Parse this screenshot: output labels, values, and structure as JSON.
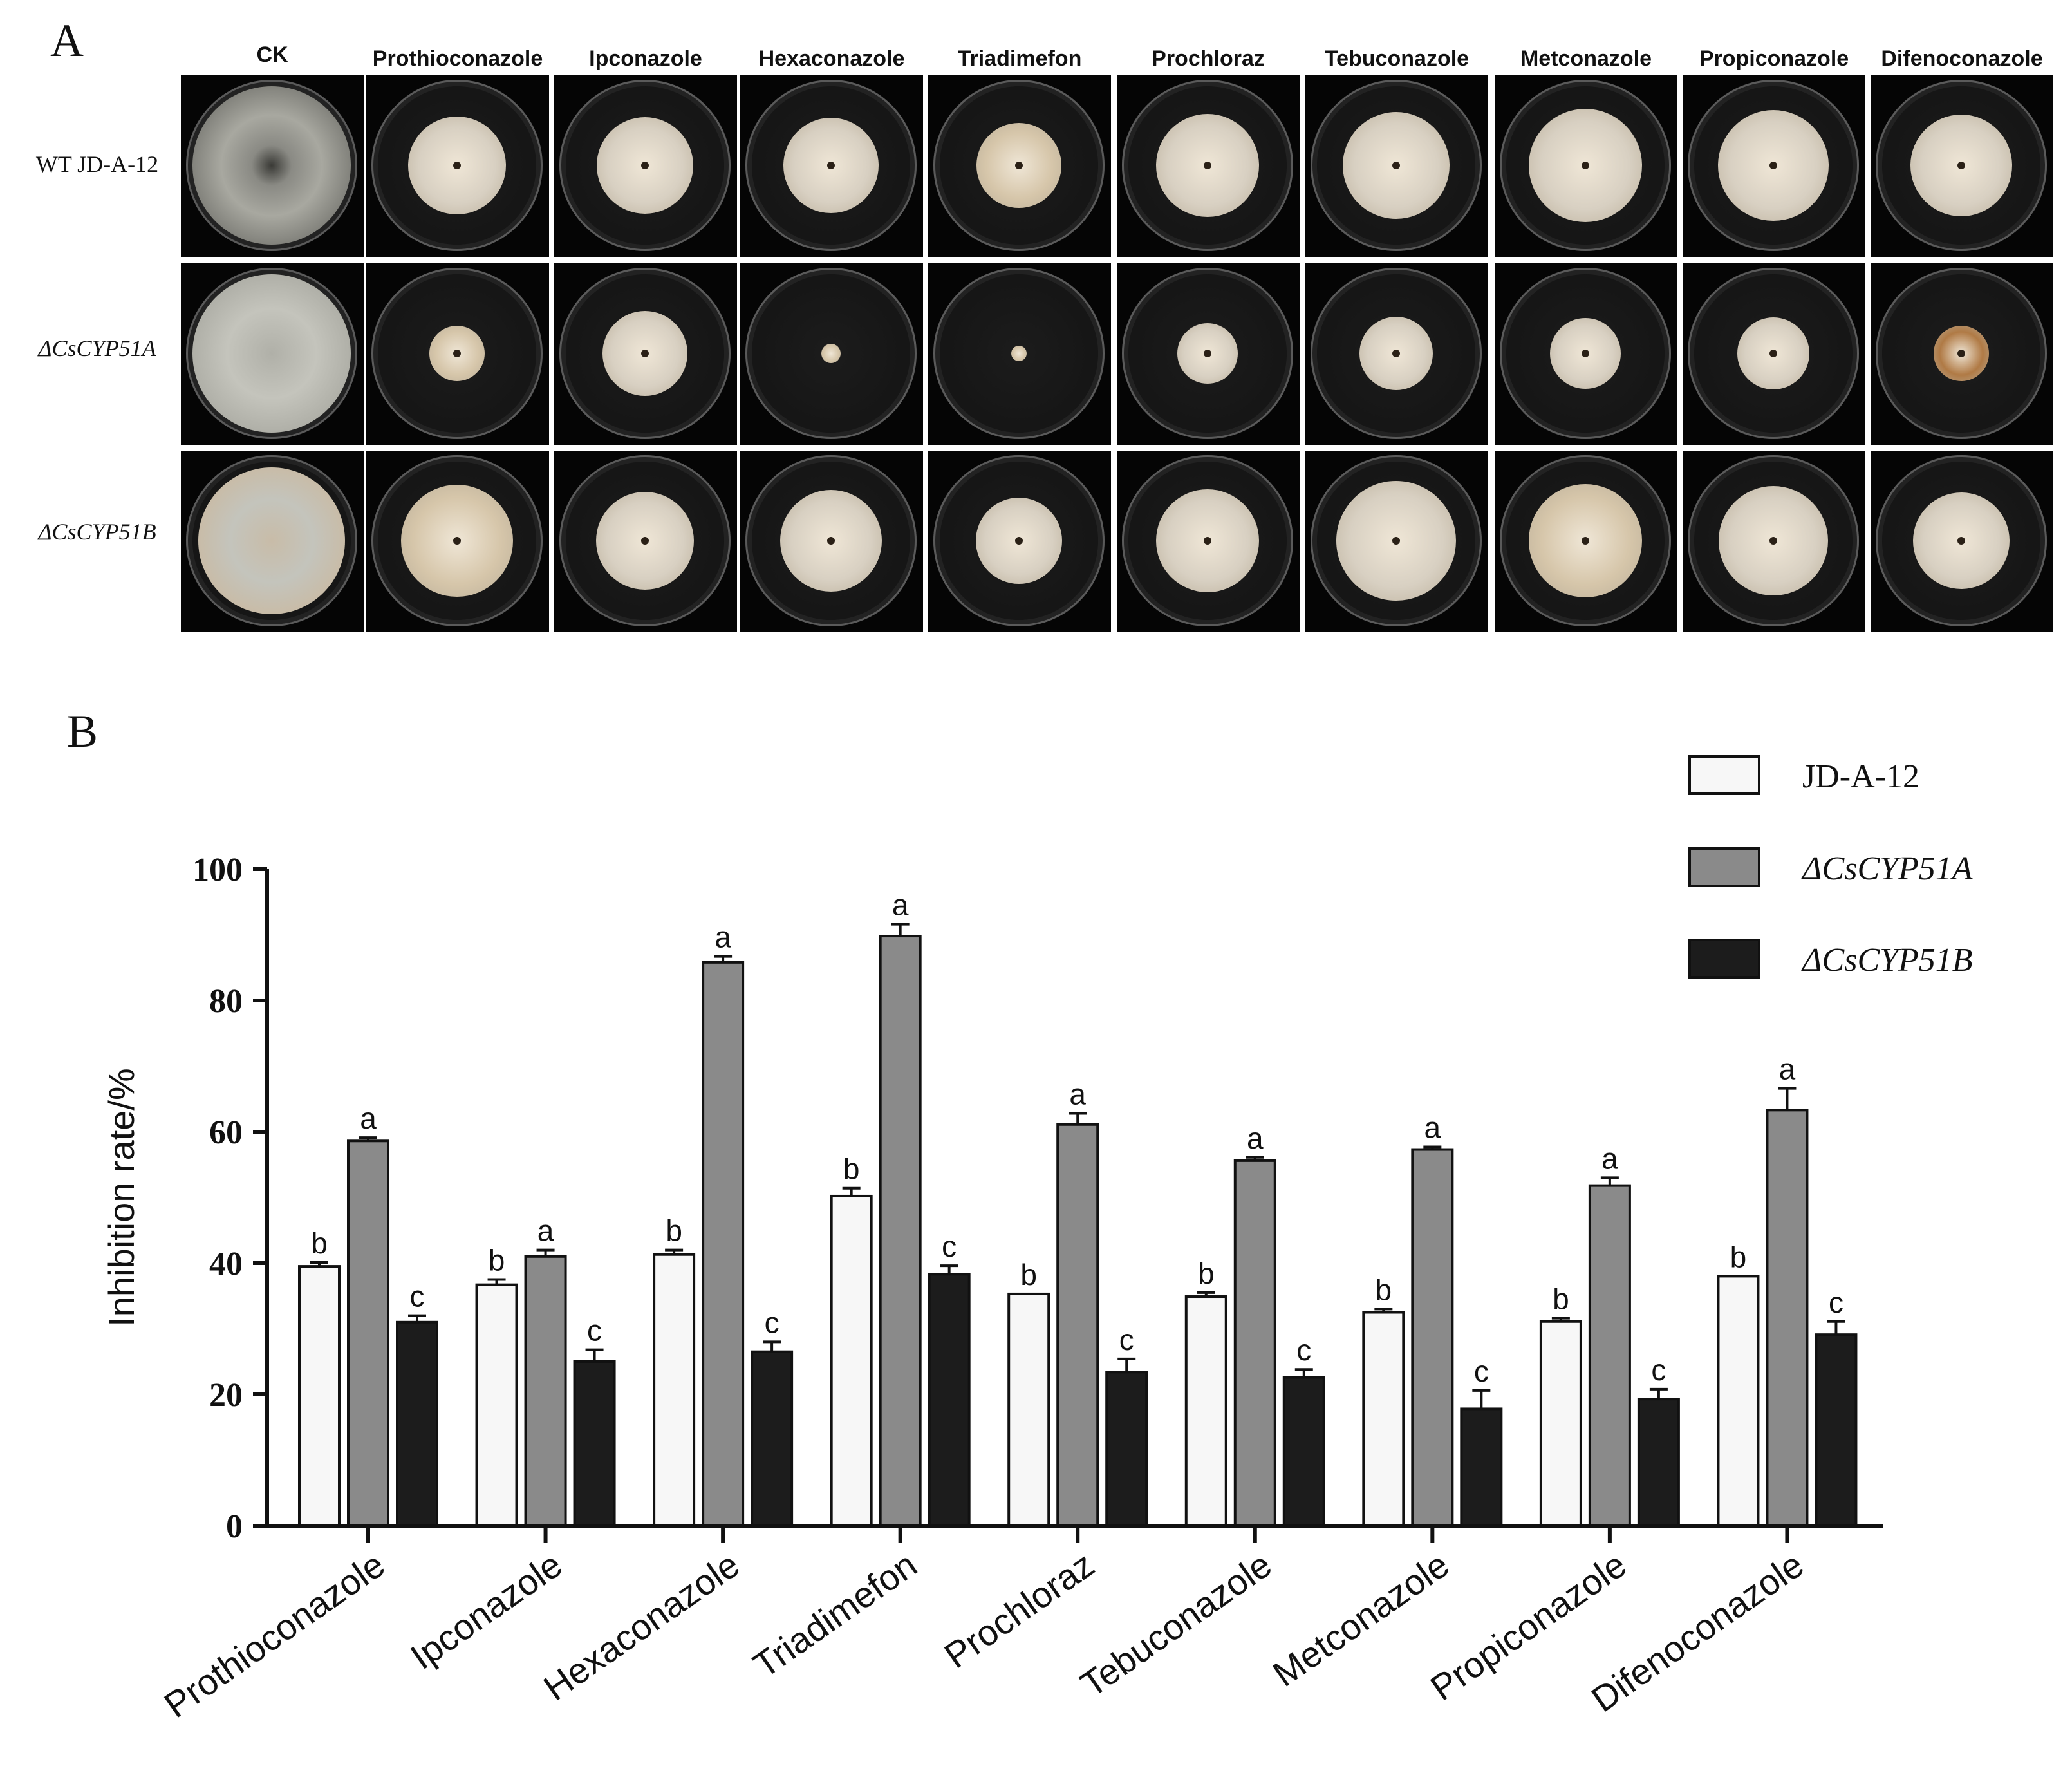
{
  "panel_a": {
    "label": "A",
    "columns": [
      "CK",
      "Prothioconazole",
      "Ipconazole",
      "Hexaconazole",
      "Triadimefon",
      "Prochloraz",
      "Tebuconazole",
      "Metconazole",
      "Propiconazole",
      "Difenoconazole"
    ],
    "rows": [
      {
        "label": "WT JD-A-12",
        "italic": false
      },
      {
        "label": "ΔCsCYP51A",
        "italic": true
      },
      {
        "label": "ΔCsCYP51B",
        "italic": true
      }
    ],
    "colony_colors": {
      "ck_wt": "#9a9a92",
      "ck_a": "#b0b0a8",
      "ck_b": "#c8bca8",
      "pale": "#d8d0c2",
      "tan": "#d6c6aa",
      "orange_center": "#b07a45"
    }
  },
  "chart_data": {
    "label": "B",
    "type": "bar",
    "categories": [
      "Prothioconazole",
      "Ipconazole",
      "Hexaconazole",
      "Triadimefon",
      "Prochloraz",
      "Tebuconazole",
      "Metconazole",
      "Propiconazole",
      "Difenoconazole"
    ],
    "series": [
      {
        "name": "JD-A-12",
        "italic": false,
        "color": "#f7f7f7",
        "values": [
          39.5,
          36.7,
          41.3,
          50.2,
          35.3,
          34.9,
          32.5,
          31.1,
          38.0
        ],
        "errors": [
          0.6,
          0.8,
          0.7,
          1.2,
          0.0,
          0.6,
          0.5,
          0.5,
          0.0
        ],
        "letters": [
          "b",
          "b",
          "b",
          "b",
          "b",
          "b",
          "b",
          "b",
          "b"
        ]
      },
      {
        "name": "ΔCsCYP51A",
        "italic": true,
        "color": "#8a8a8a",
        "values": [
          58.6,
          41.0,
          85.8,
          89.8,
          61.1,
          55.6,
          57.3,
          51.8,
          63.3
        ],
        "errors": [
          0.5,
          1.0,
          0.9,
          1.8,
          1.7,
          0.5,
          0.4,
          1.2,
          3.3
        ],
        "letters": [
          "a",
          "a",
          "a",
          "a",
          "a",
          "a",
          "a",
          "a",
          "a"
        ]
      },
      {
        "name": "ΔCsCYP51B",
        "italic": true,
        "color": "#1c1c1c",
        "values": [
          31.0,
          25.0,
          26.5,
          38.3,
          23.4,
          22.6,
          17.8,
          19.3,
          29.1
        ],
        "errors": [
          1.0,
          1.8,
          1.5,
          1.3,
          2.0,
          1.2,
          2.8,
          1.5,
          2.0
        ],
        "letters": [
          "c",
          "c",
          "c",
          "c",
          "c",
          "c",
          "c",
          "c",
          "c"
        ]
      }
    ],
    "ylabel": "Inhibition rate/%",
    "xlabel": "",
    "ylim": [
      0,
      100
    ],
    "yticks": [
      0,
      20,
      40,
      60,
      80,
      100
    ],
    "legend_position": "top-right",
    "grid": false
  }
}
